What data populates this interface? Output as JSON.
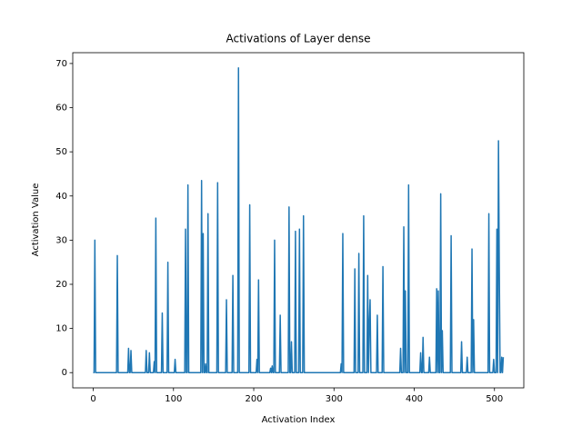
{
  "chart_data": {
    "type": "line",
    "title": "Activations of Layer dense",
    "x_label": "Activation Index",
    "y_label": "Activation Value",
    "xlim": [
      -25.55,
      536.55
    ],
    "ylim": [
      -3.45,
      72.45
    ],
    "xticks": [
      0,
      100,
      200,
      300,
      400,
      500
    ],
    "yticks": [
      0,
      10,
      20,
      30,
      40,
      50,
      60,
      70
    ],
    "series": [
      {
        "color": "#1f77b4",
        "x": [
          0,
          1,
          2,
          3,
          29,
          30,
          31,
          43,
          44,
          45,
          46,
          47,
          48,
          65,
          66,
          67,
          69,
          70,
          71,
          75,
          76,
          77,
          78,
          79,
          85,
          86,
          87,
          92,
          93,
          94,
          101,
          102,
          103,
          114,
          115,
          116,
          117,
          118,
          119,
          134,
          135,
          136,
          137,
          138,
          139,
          140,
          141,
          142,
          143,
          144,
          154,
          155,
          156,
          165,
          166,
          167,
          173,
          174,
          175,
          180,
          181,
          182,
          194,
          195,
          196,
          203,
          204,
          205,
          206,
          207,
          220,
          221,
          222,
          223,
          224,
          225,
          226,
          227,
          232,
          233,
          234,
          243,
          244,
          245,
          246,
          247,
          248,
          251,
          252,
          253,
          256,
          257,
          258,
          261,
          262,
          263,
          308,
          309,
          310,
          311,
          312,
          325,
          326,
          327,
          330,
          331,
          332,
          336,
          337,
          338,
          341,
          342,
          343,
          344,
          345,
          346,
          353,
          354,
          355,
          360,
          361,
          362,
          382,
          383,
          384,
          386,
          387,
          388,
          389,
          390,
          392,
          393,
          394,
          407,
          408,
          409,
          410,
          411,
          412,
          418,
          419,
          420,
          427,
          428,
          429,
          430,
          431,
          432,
          433,
          434,
          435,
          436,
          445,
          446,
          447,
          458,
          459,
          460,
          465,
          466,
          467,
          471,
          472,
          473,
          474,
          475,
          492,
          493,
          494,
          498,
          499,
          500,
          502,
          503,
          504,
          505,
          506,
          507,
          508,
          509,
          510,
          511
        ],
        "values": [
          0,
          0,
          30,
          0,
          0,
          26.5,
          0,
          0,
          5.5,
          0,
          0,
          5,
          0,
          0,
          5,
          0,
          0,
          4.5,
          0,
          0,
          2.5,
          0,
          35,
          0,
          0,
          13.5,
          0,
          0,
          25,
          0,
          0,
          3,
          0,
          0,
          32.5,
          0,
          0,
          42.5,
          0,
          0,
          43.5,
          0,
          31.5,
          0,
          0,
          2,
          0,
          0,
          36,
          0,
          0,
          43,
          0,
          0,
          16.5,
          0,
          0,
          22,
          0,
          0,
          69,
          0,
          0,
          38,
          0,
          0,
          3,
          0,
          21,
          0,
          0,
          1,
          0,
          1.5,
          0,
          0,
          30,
          0,
          0,
          13,
          0,
          0,
          37.5,
          0,
          0,
          7,
          0,
          0,
          32,
          0,
          0,
          32.5,
          0,
          0,
          35.5,
          0,
          0,
          2,
          0,
          31.5,
          0,
          0,
          23.5,
          0,
          0,
          27,
          0,
          0,
          35.5,
          0,
          0,
          22,
          0,
          11,
          16.5,
          0,
          0,
          13,
          0,
          0,
          24,
          0,
          0,
          5.5,
          0,
          0,
          33,
          0,
          18.5,
          0,
          0,
          42.5,
          0,
          0,
          4.5,
          0,
          0,
          8,
          0,
          0,
          3.5,
          0,
          0,
          19,
          0,
          18.5,
          0,
          0,
          40.5,
          0,
          9.5,
          0,
          0,
          31,
          0,
          0,
          7,
          0,
          0,
          3.5,
          0,
          0,
          28,
          0,
          12,
          0,
          0,
          36,
          0,
          0,
          3,
          0,
          0,
          32.5,
          0,
          52.5,
          24,
          0,
          0,
          3.5,
          0,
          3.5
        ]
      }
    ]
  }
}
